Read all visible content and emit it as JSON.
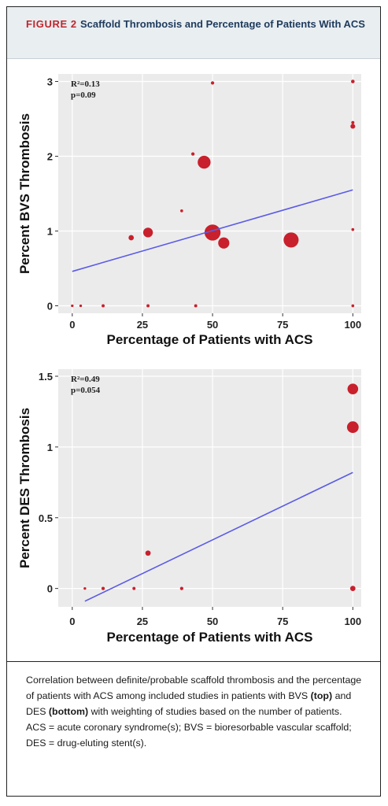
{
  "figure": {
    "label": "FIGURE 2",
    "title": "Scaffold Thrombosis and Percentage of Patients With ACS"
  },
  "caption": {
    "part1": "Correlation between definite/probable scaffold thrombosis and the percentage of patients with ACS among included studies in patients with BVS ",
    "top_word": "(top)",
    "part2": " and DES ",
    "bottom_word": "(bottom)",
    "part3": " with weighting of studies based on the number of patients. ACS = acute coronary syndrome(s); BVS = bioresorbable vascular scaffold; DES = drug-eluting stent(s)."
  },
  "colors": {
    "panel_bg": "#ebebeb",
    "grid": "#ffffff",
    "point": "#c8202c",
    "fit_line": "#5b5be6",
    "header_bg": "#e9eef1",
    "label_red": "#c0272d",
    "title_navy": "#1d3a5c"
  },
  "chart_data": [
    {
      "type": "scatter",
      "name": "BVS",
      "xlabel": "Percentage of Patients with ACS",
      "ylabel": "Percent BVS Thrombosis",
      "xlim": [
        -5,
        103
      ],
      "ylim": [
        -0.1,
        3.1
      ],
      "x_ticks": [
        0,
        25,
        50,
        75,
        100
      ],
      "y_ticks": [
        0,
        1,
        2,
        3
      ],
      "y_tick_labels": [
        "0",
        "1",
        "2",
        "3"
      ],
      "grid": true,
      "stats": [
        "R²=0.13",
        "p=0.09"
      ],
      "fit_line": {
        "x": [
          0,
          100
        ],
        "y": [
          0.46,
          1.55
        ]
      },
      "points": [
        {
          "x": 0,
          "y": 0,
          "weight": 0.3
        },
        {
          "x": 3,
          "y": 0,
          "weight": 0.3
        },
        {
          "x": 11,
          "y": 0,
          "weight": 0.5
        },
        {
          "x": 27,
          "y": 0,
          "weight": 0.5
        },
        {
          "x": 44,
          "y": 0,
          "weight": 0.5
        },
        {
          "x": 100,
          "y": 0,
          "weight": 0.4
        },
        {
          "x": 21,
          "y": 0.91,
          "weight": 1.4
        },
        {
          "x": 27,
          "y": 0.98,
          "weight": 3.2
        },
        {
          "x": 39,
          "y": 1.27,
          "weight": 0.4
        },
        {
          "x": 43,
          "y": 2.03,
          "weight": 0.6
        },
        {
          "x": 47,
          "y": 1.92,
          "weight": 4.5
        },
        {
          "x": 50,
          "y": 2.98,
          "weight": 0.6
        },
        {
          "x": 50,
          "y": 0.98,
          "weight": 5.8
        },
        {
          "x": 54,
          "y": 0.84,
          "weight": 3.8
        },
        {
          "x": 78,
          "y": 0.88,
          "weight": 5.4
        },
        {
          "x": 100,
          "y": 3.0,
          "weight": 0.7
        },
        {
          "x": 100,
          "y": 2.45,
          "weight": 0.5
        },
        {
          "x": 100,
          "y": 2.4,
          "weight": 1.2
        },
        {
          "x": 100,
          "y": 1.02,
          "weight": 0.4
        }
      ]
    },
    {
      "type": "scatter",
      "name": "DES",
      "xlabel": "Percentage of Patients with ACS",
      "ylabel": "Percent DES Thrombosis",
      "xlim": [
        -5,
        103
      ],
      "ylim": [
        -0.13,
        1.55
      ],
      "x_ticks": [
        0,
        25,
        50,
        75,
        100
      ],
      "y_ticks": [
        0,
        0.5,
        1,
        1.5
      ],
      "y_tick_labels": [
        "0",
        "0.5",
        "1",
        "1.5"
      ],
      "grid": true,
      "stats": [
        "R²=0.49",
        "p=0.054"
      ],
      "fit_line": {
        "x": [
          4.5,
          100
        ],
        "y": [
          -0.09,
          0.82
        ]
      },
      "points": [
        {
          "x": 4.5,
          "y": 0,
          "weight": 0.3
        },
        {
          "x": 11,
          "y": 0,
          "weight": 0.6
        },
        {
          "x": 22,
          "y": 0,
          "weight": 0.5
        },
        {
          "x": 27,
          "y": 0.25,
          "weight": 1.4
        },
        {
          "x": 39,
          "y": 0,
          "weight": 0.6
        },
        {
          "x": 100,
          "y": 1.41,
          "weight": 3.6
        },
        {
          "x": 100,
          "y": 1.14,
          "weight": 4.0
        },
        {
          "x": 100,
          "y": 0,
          "weight": 1.4
        }
      ]
    }
  ]
}
